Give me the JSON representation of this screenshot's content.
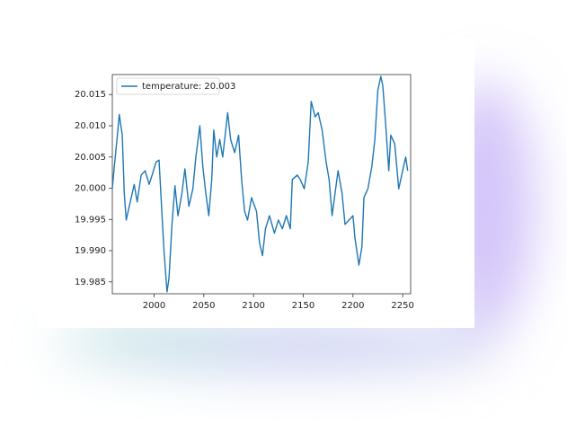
{
  "chart_data": {
    "type": "line",
    "x": [
      1958,
      1960,
      1963,
      1965,
      1968,
      1970,
      1972,
      1977,
      1980,
      1983,
      1987,
      1991,
      1995,
      1998,
      2002,
      2005,
      2008,
      2010,
      2013,
      2015,
      2018,
      2021,
      2024,
      2028,
      2031,
      2035,
      2039,
      2042,
      2046,
      2049,
      2052,
      2055,
      2058,
      2060,
      2063,
      2066,
      2069,
      2074,
      2077,
      2081,
      2085,
      2088,
      2091,
      2094,
      2098,
      2103,
      2106,
      2109,
      2112,
      2116,
      2121,
      2125,
      2129,
      2133,
      2137,
      2139,
      2144,
      2147,
      2151,
      2155,
      2158,
      2162,
      2165,
      2169,
      2173,
      2176,
      2179,
      2182,
      2185,
      2189,
      2192,
      2196,
      2200,
      2202,
      2206,
      2209,
      2211,
      2215,
      2219,
      2222,
      2225,
      2228,
      2230,
      2233,
      2236,
      2238,
      2242,
      2246,
      2249,
      2253,
      2255
    ],
    "series": [
      {
        "name": "temperature: 20.003",
        "color": "#1f77b4",
        "values": [
          19.9999,
          20.0035,
          20.0083,
          20.0118,
          20.0085,
          19.9992,
          19.9949,
          19.9985,
          20.0006,
          19.9978,
          20.0021,
          20.0028,
          20.0006,
          20.0021,
          20.0042,
          20.0045,
          19.9956,
          19.9899,
          19.9834,
          19.9856,
          19.9942,
          20.0004,
          19.9956,
          19.9992,
          20.0031,
          19.9971,
          19.9999,
          20.005,
          20.01,
          20.0035,
          19.9992,
          19.9956,
          20.0014,
          20.0093,
          20.005,
          20.0078,
          20.005,
          20.0121,
          20.0078,
          20.0057,
          20.0085,
          20.0014,
          19.9963,
          19.9949,
          19.9985,
          19.9963,
          19.9913,
          19.9892,
          19.9935,
          19.9956,
          19.9928,
          19.9949,
          19.9935,
          19.9956,
          19.9935,
          20.0014,
          20.0021,
          20.0014,
          19.9999,
          20.0042,
          20.0139,
          20.0114,
          20.0121,
          20.0093,
          20.0042,
          20.0014,
          19.9956,
          19.9992,
          20.0028,
          19.9992,
          19.9942,
          19.9949,
          19.9956,
          19.992,
          19.9877,
          19.9906,
          19.9985,
          19.9999,
          20.0035,
          20.0078,
          20.0157,
          20.0179,
          20.0164,
          20.01,
          20.0028,
          20.0085,
          20.0071,
          19.9999,
          20.0021,
          20.005,
          20.0028
        ]
      }
    ],
    "xlim": [
      1958,
      2258
    ],
    "ylim": [
      19.9831,
      20.0182
    ],
    "xticks": [
      2000,
      2050,
      2100,
      2150,
      2200,
      2250
    ],
    "yticks": [
      19.985,
      {
        "value": 19.99,
        "label": "19.990"
      },
      19.995,
      {
        "value": 20,
        "label": "20.000"
      },
      20.005,
      {
        "value": 20.01,
        "label": "20.010"
      },
      20.015
    ],
    "grid": false,
    "legend": "upper left"
  }
}
